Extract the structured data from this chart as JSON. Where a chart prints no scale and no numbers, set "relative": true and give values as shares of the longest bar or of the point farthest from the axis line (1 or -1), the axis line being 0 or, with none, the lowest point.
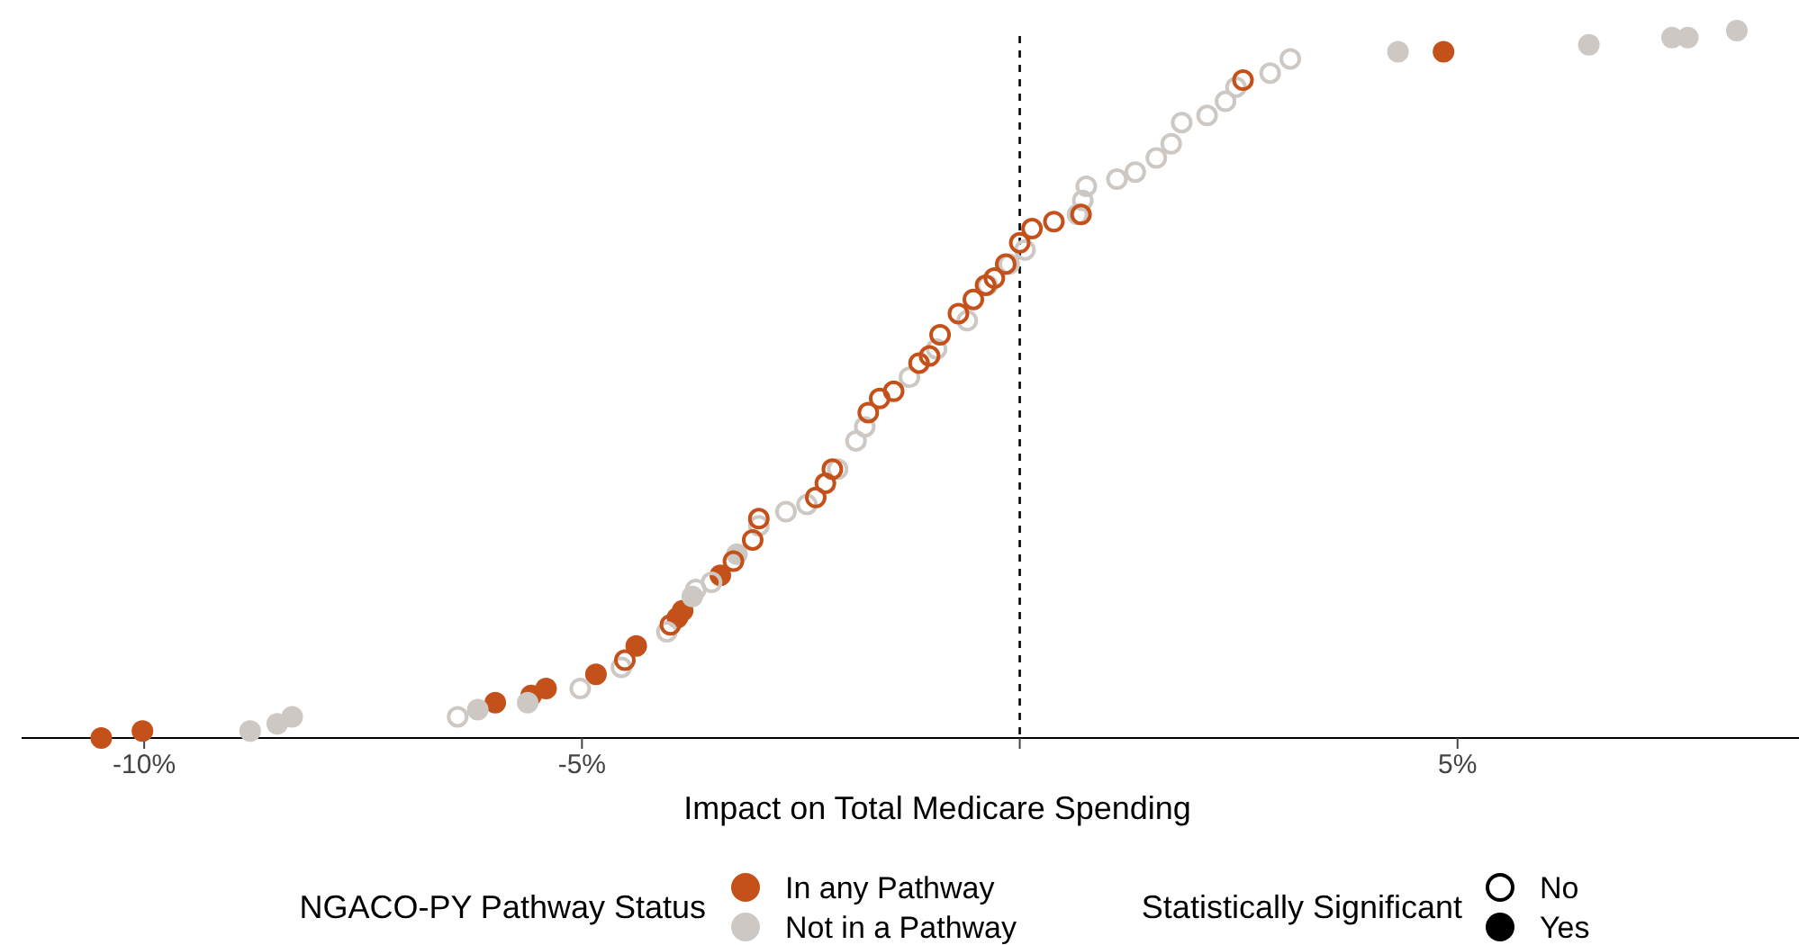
{
  "chart_data": {
    "type": "scatter",
    "relative": true,
    "xlabel": "Impact on Total Medicare Spending",
    "legend_title": "NGACO-PY Pathway Status",
    "legend": "bottom",
    "tick_labels": "x",
    "grid": false,
    "xlim": [
      -11.4,
      8.9
    ],
    "xticks": [
      {
        "value": -10,
        "label": "-10%"
      },
      {
        "value": -5,
        "label": "-5%"
      },
      {
        "value": 0,
        "label": null
      },
      {
        "value": 5,
        "label": "5%"
      }
    ],
    "ref_lines": [
      {
        "axis": "x",
        "value": 0,
        "label": null,
        "line_style": "dashed",
        "color": "#000000"
      }
    ],
    "annotations": [
      "Statistically Significant",
      "No",
      "Yes"
    ],
    "series": [
      {
        "name": "In any Pathway",
        "color": "#c4501a",
        "marker": "circle",
        "x": [
          -10.49,
          -10.02,
          -5.99,
          -5.58,
          -5.41,
          -4.84,
          -4.38,
          -3.91,
          -3.85,
          -3.42,
          4.84
        ],
        "values": [
          0.0,
          0.01,
          0.05,
          0.06,
          0.07,
          0.09,
          0.13,
          0.17,
          0.18,
          0.23,
          0.97
        ]
      },
      {
        "name": "Not in a Pathway",
        "color": "#cdc8c4",
        "marker": "circle",
        "x": [
          -8.79,
          -8.48,
          -8.31,
          -6.19,
          -5.62,
          -3.74,
          -3.23,
          4.32,
          6.5,
          7.45,
          7.63,
          8.19
        ],
        "values": [
          0.01,
          0.02,
          0.03,
          0.04,
          0.05,
          0.2,
          0.26,
          0.97,
          0.98,
          0.99,
          0.99,
          1.0
        ]
      },
      {
        "color": "#cdc8c4",
        "marker": "circle-open",
        "x": [
          -6.42,
          -5.02,
          -4.55,
          -4.03,
          -3.7,
          -3.52,
          -2.98,
          -2.67,
          -2.43,
          -2.08,
          -1.87,
          -1.77,
          -1.26,
          -0.95,
          -0.6,
          -0.37,
          -0.12,
          0.06,
          0.66,
          0.72,
          0.76,
          1.11,
          1.32,
          1.56,
          1.73,
          1.85,
          2.14,
          2.35,
          2.47,
          2.86,
          3.09
        ],
        "values": [
          0.03,
          0.07,
          0.1,
          0.15,
          0.21,
          0.22,
          0.3,
          0.32,
          0.33,
          0.38,
          0.42,
          0.44,
          0.51,
          0.55,
          0.59,
          0.64,
          0.67,
          0.69,
          0.74,
          0.76,
          0.78,
          0.79,
          0.8,
          0.82,
          0.84,
          0.87,
          0.88,
          0.9,
          0.92,
          0.94,
          0.96
        ]
      },
      {
        "color": "#c4501a",
        "marker": "circle-open",
        "x": [
          -4.51,
          -3.99,
          -3.27,
          -3.05,
          -2.98,
          -2.33,
          -2.22,
          -2.14,
          -1.73,
          -1.6,
          -1.44,
          -1.15,
          -1.03,
          -0.91,
          -0.7,
          -0.53,
          -0.39,
          -0.29,
          -0.16,
          0.0,
          0.14,
          0.39,
          0.7,
          2.55
        ],
        "values": [
          0.11,
          0.16,
          0.25,
          0.28,
          0.31,
          0.34,
          0.36,
          0.38,
          0.46,
          0.48,
          0.49,
          0.53,
          0.54,
          0.57,
          0.6,
          0.62,
          0.64,
          0.65,
          0.67,
          0.7,
          0.72,
          0.73,
          0.74,
          0.93
        ]
      }
    ]
  }
}
